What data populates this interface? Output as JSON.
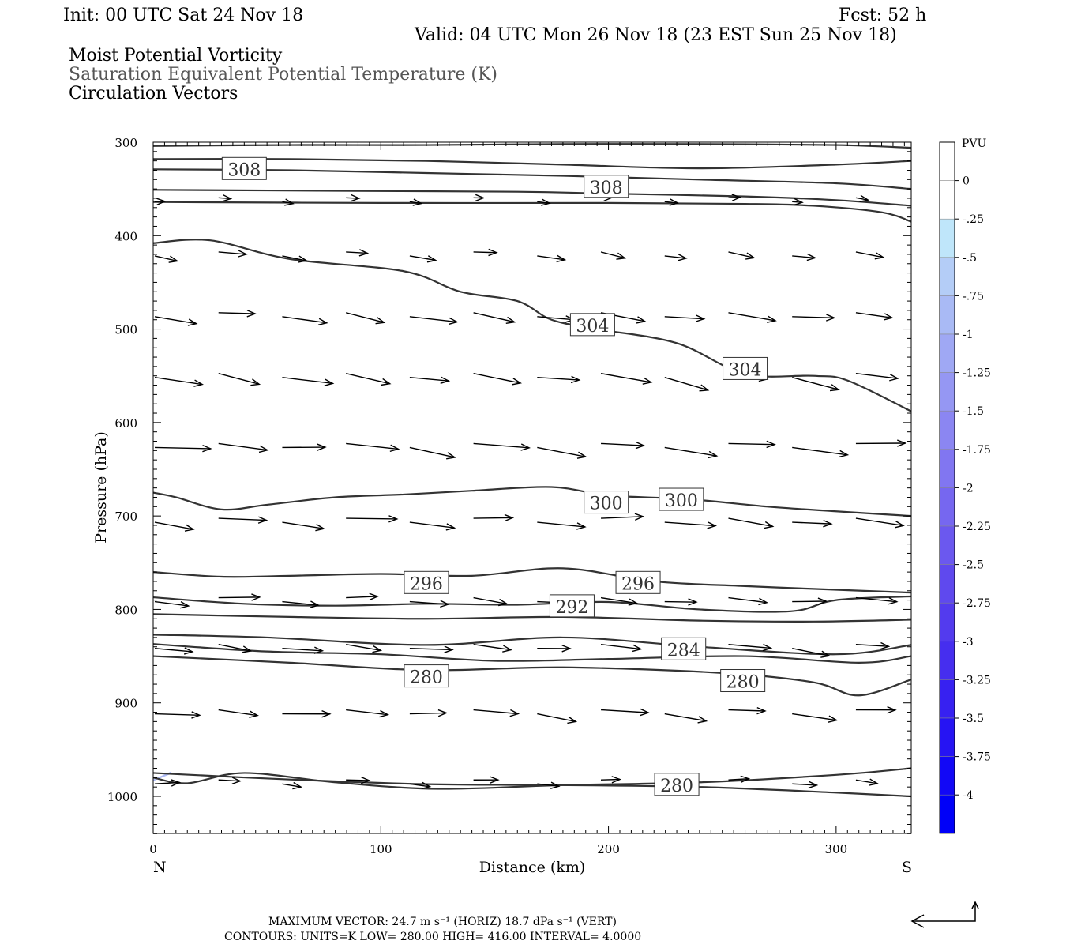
{
  "header": {
    "init": "Init: 00 UTC Sat 24 Nov 18",
    "fcst": "Fcst:   52 h",
    "valid": "Valid: 04 UTC Mon 26 Nov 18 (23 EST Sun 25 Nov 18)",
    "field1": "Moist Potential Vorticity",
    "field2": "Saturation Equivalent Potential Temperature (K)",
    "field3": "Circulation Vectors"
  },
  "footer": {
    "max_vector": "MAXIMUM VECTOR:  24.7 m s⁻¹ (HORIZ)         18.7 dPa s⁻¹ (VERT)",
    "contours": "CONTOURS:  UNITS=K  LOW=  280.00       HIGH=  416.00       INTERVAL=    4.0000"
  },
  "colorbar": {
    "title": "PVU",
    "labels": [
      "0",
      "-.25",
      "-.5",
      "-.75",
      "-1",
      "-1.25",
      "-1.5",
      "-1.75",
      "-2",
      "-2.25",
      "-2.5",
      "-2.75",
      "-3",
      "-3.25",
      "-3.5",
      "-3.75",
      "-4"
    ],
    "colors": [
      "#ffffff",
      "#ffffff",
      "#bfe6fa",
      "#b4cdf7",
      "#a9baf5",
      "#9fa8f4",
      "#9597f3",
      "#8b86f2",
      "#8176f1",
      "#7667f0",
      "#6b58ef",
      "#5f49ee",
      "#533bee",
      "#462eef",
      "#3721f1",
      "#2614f3",
      "#1208f6",
      "#0000f8"
    ]
  },
  "chart_data": {
    "type": "cross-section contour with vectors",
    "xlabel": "Distance (km)",
    "ylabel": "Pressure (hPa)",
    "x_end_labels": {
      "left": "N",
      "right": "S"
    },
    "xlim": [
      0,
      333
    ],
    "ylim": [
      1040,
      300
    ],
    "x_ticks": [
      0,
      100,
      200,
      300
    ],
    "y_ticks": [
      300,
      400,
      500,
      600,
      700,
      800,
      900,
      1000
    ],
    "contour_labels": [
      {
        "text": "308",
        "x": 40,
        "p": 329
      },
      {
        "text": "308",
        "x": 199,
        "p": 348
      },
      {
        "text": "304",
        "x": 193,
        "p": 496
      },
      {
        "text": "304",
        "x": 260,
        "p": 543
      },
      {
        "text": "300",
        "x": 199,
        "p": 686
      },
      {
        "text": "300",
        "x": 232,
        "p": 683
      },
      {
        "text": "296",
        "x": 120,
        "p": 772
      },
      {
        "text": "296",
        "x": 213,
        "p": 772
      },
      {
        "text": "292",
        "x": 184,
        "p": 797
      },
      {
        "text": "284",
        "x": 233,
        "p": 843
      },
      {
        "text": "280",
        "x": 120,
        "p": 872
      },
      {
        "text": "280",
        "x": 259,
        "p": 877
      },
      {
        "text": "280",
        "x": 230,
        "p": 988
      }
    ],
    "contour_lines": [
      {
        "x": [
          0,
          60,
          120,
          180,
          240,
          300,
          333
        ],
        "p": [
          304,
          303,
          303,
          302,
          302,
          303,
          306
        ]
      },
      {
        "x": [
          0,
          60,
          120,
          180,
          240,
          300,
          333
        ],
        "p": [
          318,
          318,
          320,
          324,
          328,
          324,
          320
        ]
      },
      {
        "x": [
          0,
          60,
          120,
          180,
          240,
          300,
          333
        ],
        "p": [
          329,
          330,
          333,
          336,
          340,
          344,
          350
        ]
      },
      {
        "x": [
          0,
          80,
          160,
          200,
          260,
          300,
          333
        ],
        "p": [
          351,
          352,
          353,
          355,
          358,
          362,
          368
        ]
      },
      {
        "x": [
          0,
          100,
          200,
          260,
          290,
          320,
          333
        ],
        "p": [
          364,
          365,
          365,
          366,
          368,
          375,
          385
        ]
      },
      {
        "x": [
          0,
          25,
          60,
          110,
          135,
          160,
          175,
          195,
          230,
          260,
          290,
          305,
          333
        ],
        "p": [
          408,
          405,
          425,
          438,
          460,
          470,
          490,
          500,
          515,
          548,
          550,
          555,
          588
        ]
      },
      {
        "x": [
          0,
          10,
          30,
          50,
          80,
          110,
          140,
          175,
          200,
          235,
          270,
          300,
          333
        ],
        "p": [
          675,
          680,
          693,
          688,
          680,
          677,
          673,
          669,
          678,
          682,
          690,
          695,
          700
        ]
      },
      {
        "x": [
          0,
          30,
          60,
          100,
          140,
          180,
          220,
          260,
          290,
          333
        ],
        "p": [
          760,
          765,
          764,
          762,
          764,
          756,
          770,
          775,
          778,
          782
        ]
      },
      {
        "x": [
          0,
          40,
          80,
          120,
          160,
          200,
          240,
          280,
          300,
          333
        ],
        "p": [
          787,
          794,
          796,
          794,
          795,
          792,
          800,
          802,
          790,
          786
        ]
      },
      {
        "x": [
          0,
          60,
          120,
          180,
          240,
          290,
          333
        ],
        "p": [
          805,
          808,
          810,
          808,
          812,
          813,
          811
        ]
      },
      {
        "x": [
          0,
          50,
          120,
          180,
          240,
          300,
          333
        ],
        "p": [
          827,
          830,
          838,
          830,
          840,
          848,
          838
        ]
      },
      {
        "x": [
          0,
          50,
          100,
          150,
          200,
          260,
          310,
          333
        ],
        "p": [
          837,
          845,
          848,
          855,
          853,
          850,
          857,
          850
        ]
      },
      {
        "x": [
          0,
          60,
          120,
          180,
          250,
          290,
          310,
          333
        ],
        "p": [
          850,
          857,
          865,
          862,
          868,
          878,
          892,
          875
        ]
      },
      {
        "x": [
          0,
          15,
          40,
          80,
          125,
          180,
          240,
          300,
          333
        ],
        "p": [
          980,
          986,
          975,
          985,
          992,
          988,
          985,
          977,
          970
        ]
      },
      {
        "x": [
          0,
          60,
          120,
          180,
          240,
          300,
          333
        ],
        "p": [
          975,
          982,
          987,
          988,
          990,
          996,
          1000
        ]
      }
    ],
    "pv_shading": [
      {
        "value": -0.5,
        "x": [
          0,
          8
        ],
        "p": [
          975,
          982
        ]
      }
    ]
  }
}
